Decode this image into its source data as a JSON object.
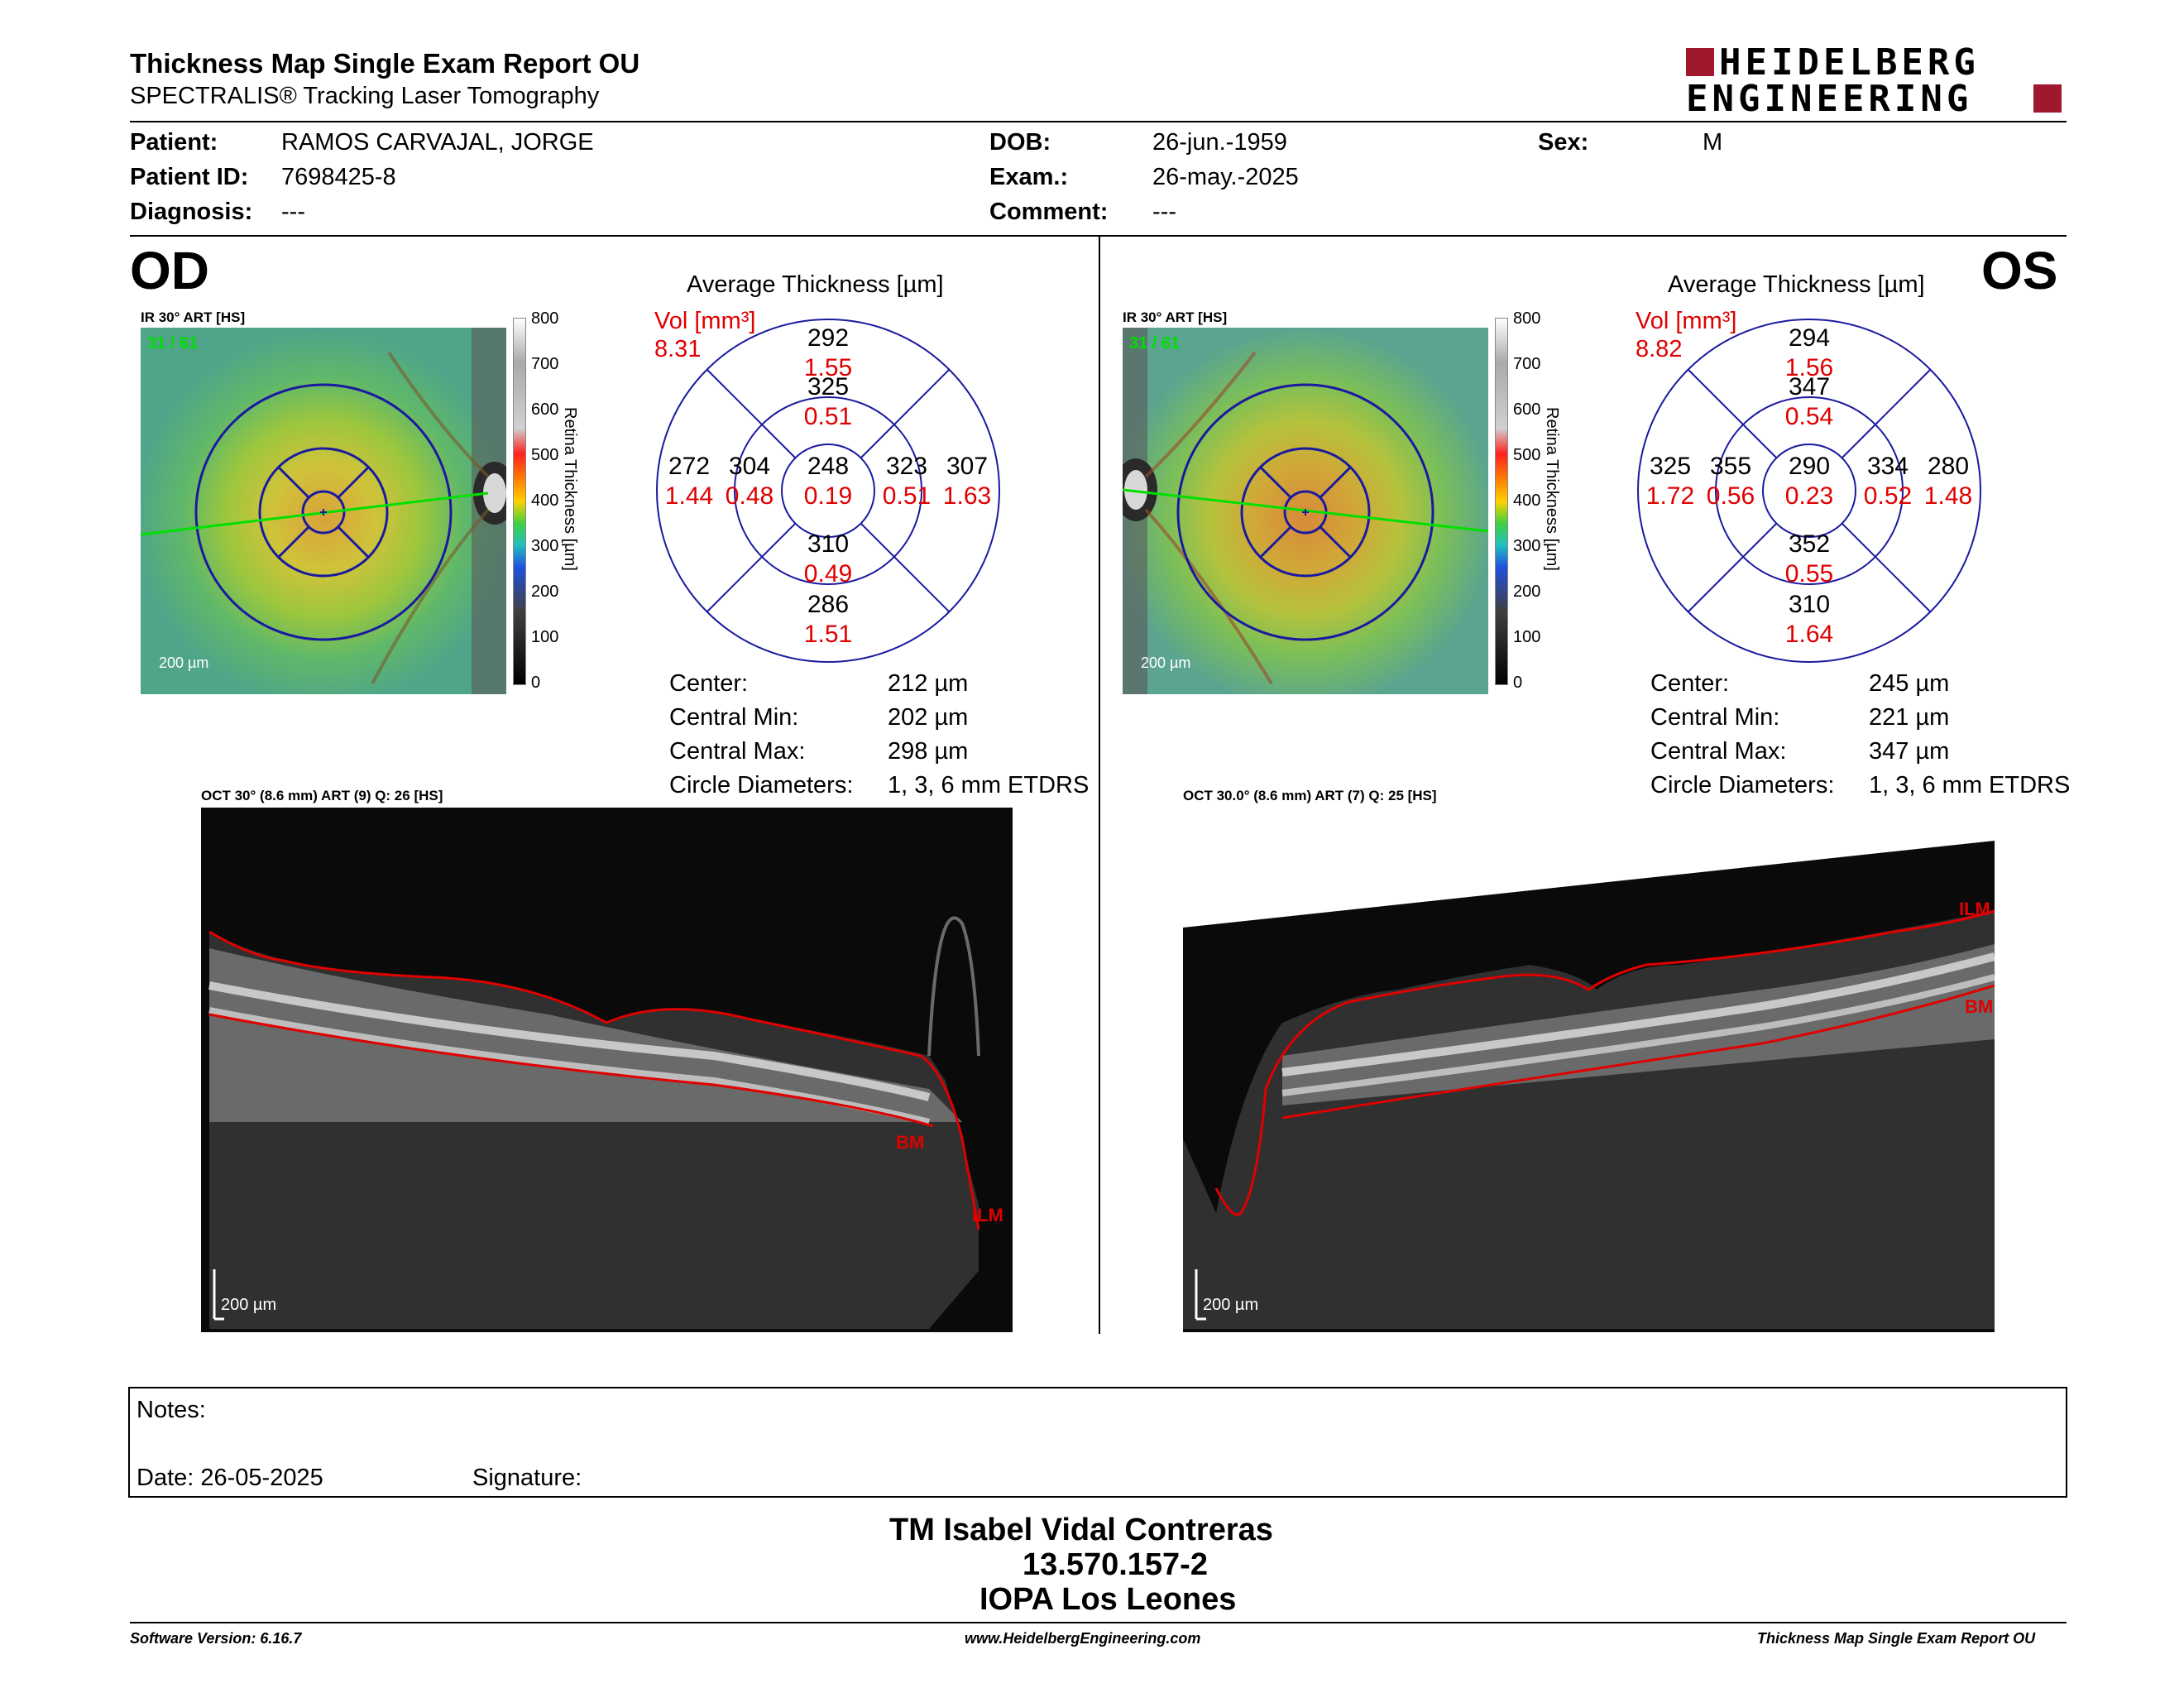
{
  "header": {
    "title": "Thickness Map Single Exam Report OU",
    "subtitle": "SPECTRALIS® Tracking Laser Tomography",
    "logo_line1": "HEIDELBERG",
    "logo_line2": "ENGINEERING"
  },
  "patient": {
    "patient_label": "Patient:",
    "patient_value": "RAMOS CARVAJAL, JORGE",
    "id_label": "Patient ID:",
    "id_value": "7698425-8",
    "diagnosis_label": "Diagnosis:",
    "diagnosis_value": "---",
    "dob_label": "DOB:",
    "dob_value": "26-jun.-1959",
    "exam_label": "Exam.:",
    "exam_value": "26-may.-2025",
    "comment_label": "Comment:",
    "comment_value": "---",
    "sex_label": "Sex:",
    "sex_value": "M"
  },
  "colorbar": {
    "ticks": [
      "800",
      "700",
      "600",
      "500",
      "400",
      "300",
      "200",
      "100",
      "0"
    ],
    "axis_label": "Retina Thickness [µm]"
  },
  "od": {
    "eye": "OD",
    "ir_label": "IR 30° ART [HS]",
    "ir_frames": "31 / 61",
    "ir_scale": "200 µm",
    "avg_title": "Average Thickness [µm]",
    "vol_label": "Vol [mm³]",
    "vol_total": "8.31",
    "grid": {
      "center": {
        "t": "248",
        "v": "0.19"
      },
      "inner_superior": {
        "t": "325",
        "v": "0.51"
      },
      "inner_inferior": {
        "t": "310",
        "v": "0.49"
      },
      "inner_temporal": {
        "t": "304",
        "v": "0.48"
      },
      "inner_nasal": {
        "t": "323",
        "v": "0.51"
      },
      "outer_superior": {
        "t": "292",
        "v": "1.55"
      },
      "outer_inferior": {
        "t": "286",
        "v": "1.51"
      },
      "outer_temporal": {
        "t": "272",
        "v": "1.44"
      },
      "outer_nasal": {
        "t": "307",
        "v": "1.63"
      }
    },
    "stats": {
      "center_label": "Center:",
      "center_value": "212 µm",
      "min_label": "Central Min:",
      "min_value": "202 µm",
      "max_label": "Central Max:",
      "max_value": "298 µm",
      "diam_label": "Circle Diameters:",
      "diam_value": "1, 3, 6 mm ETDRS"
    },
    "oct_label": "OCT 30° (8.6 mm) ART (9) Q: 26 [HS]",
    "oct_scale": "200 µm",
    "ilm": "ILM",
    "bm": "BM"
  },
  "os": {
    "eye": "OS",
    "ir_label": "IR 30° ART [HS]",
    "ir_frames": "31 / 61",
    "ir_scale": "200 µm",
    "avg_title": "Average Thickness [µm]",
    "vol_label": "Vol [mm³]",
    "vol_total": "8.82",
    "grid": {
      "center": {
        "t": "290",
        "v": "0.23"
      },
      "inner_superior": {
        "t": "347",
        "v": "0.54"
      },
      "inner_inferior": {
        "t": "352",
        "v": "0.55"
      },
      "inner_temporal": {
        "t": "355",
        "v": "0.56"
      },
      "inner_nasal": {
        "t": "334",
        "v": "0.52"
      },
      "outer_superior": {
        "t": "294",
        "v": "1.56"
      },
      "outer_inferior": {
        "t": "310",
        "v": "1.64"
      },
      "outer_temporal": {
        "t": "325",
        "v": "1.72"
      },
      "outer_nasal": {
        "t": "280",
        "v": "1.48"
      }
    },
    "stats": {
      "center_label": "Center:",
      "center_value": "245 µm",
      "min_label": "Central Min:",
      "min_value": "221 µm",
      "max_label": "Central Max:",
      "max_value": "347 µm",
      "diam_label": "Circle Diameters:",
      "diam_value": "1, 3, 6 mm ETDRS"
    },
    "oct_label": "OCT 30.0° (8.6 mm) ART (7) Q: 25 [HS]",
    "oct_scale": "200 µm",
    "ilm": "ILM",
    "bm": "BM"
  },
  "notes": {
    "notes_label": "Notes:",
    "date_label": "Date: 26-05-2025",
    "signature_label": "Signature:"
  },
  "signer": {
    "name": "TM Isabel Vidal Contreras",
    "id": "13.570.157-2",
    "org": "IOPA Los Leones"
  },
  "footer": {
    "software": "Software Version: 6.16.7",
    "url": "www.HeidelbergEngineering.com",
    "report": "Thickness Map Single Exam Report OU"
  },
  "colors": {
    "accent_red": "#e00000",
    "grid_blue": "#1a1aa0",
    "logo_red": "#a0182e"
  }
}
